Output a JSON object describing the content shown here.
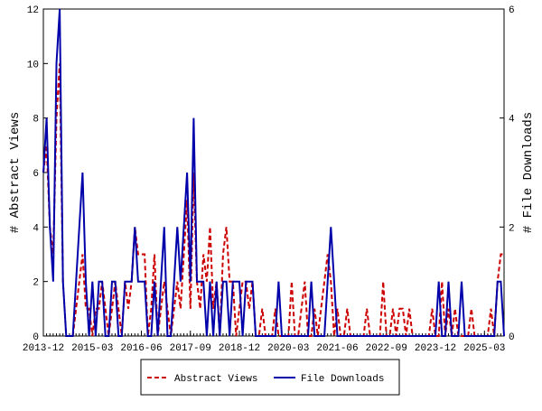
{
  "chart_data": {
    "type": "line",
    "ylabel": "# Abstract Views",
    "y2label": "# File Downloads",
    "x": [
      "2013-12",
      "2014-01",
      "2014-02",
      "2014-03",
      "2014-04",
      "2014-05",
      "2014-06",
      "2014-07",
      "2014-08",
      "2014-09",
      "2014-10",
      "2014-11",
      "2014-12",
      "2015-01",
      "2015-02",
      "2015-03",
      "2015-04",
      "2015-05",
      "2015-06",
      "2015-07",
      "2015-08",
      "2015-09",
      "2015-10",
      "2015-11",
      "2015-12",
      "2016-01",
      "2016-02",
      "2016-03",
      "2016-04",
      "2016-05",
      "2016-06",
      "2016-07",
      "2016-08",
      "2016-09",
      "2016-10",
      "2016-11",
      "2016-12",
      "2017-01",
      "2017-02",
      "2017-03",
      "2017-04",
      "2017-05",
      "2017-06",
      "2017-07",
      "2017-08",
      "2017-09",
      "2017-10",
      "2017-11",
      "2017-12",
      "2018-01",
      "2018-02",
      "2018-03",
      "2018-04",
      "2018-05",
      "2018-06",
      "2018-07",
      "2018-08",
      "2018-09",
      "2018-10",
      "2018-11",
      "2018-12",
      "2019-01",
      "2019-02",
      "2019-03",
      "2019-04",
      "2019-05",
      "2019-06",
      "2019-07",
      "2019-08",
      "2019-09",
      "2019-10",
      "2019-11",
      "2019-12",
      "2020-01",
      "2020-02",
      "2020-03",
      "2020-04",
      "2020-05",
      "2020-06",
      "2020-07",
      "2020-08",
      "2020-09",
      "2020-10",
      "2020-11",
      "2020-12",
      "2021-01",
      "2021-02",
      "2021-03",
      "2021-04",
      "2021-05",
      "2021-06",
      "2021-07",
      "2021-08",
      "2021-09",
      "2021-10",
      "2021-11",
      "2021-12",
      "2022-01",
      "2022-02",
      "2022-03",
      "2022-04",
      "2022-05",
      "2022-06",
      "2022-07",
      "2022-08",
      "2022-09",
      "2022-10",
      "2022-11",
      "2022-12",
      "2023-01",
      "2023-02",
      "2023-03",
      "2023-04",
      "2023-05",
      "2023-06",
      "2023-07",
      "2023-08",
      "2023-09",
      "2023-10",
      "2023-11",
      "2023-12",
      "2024-01",
      "2024-02",
      "2024-03",
      "2024-04",
      "2024-05",
      "2024-06",
      "2024-07",
      "2024-08",
      "2024-09",
      "2024-10",
      "2024-11",
      "2024-12",
      "2025-01",
      "2025-02",
      "2025-03",
      "2025-04",
      "2025-05",
      "2025-06",
      "2025-07",
      "2025-08",
      "2025-09"
    ],
    "series": [
      {
        "name": "Abstract Views",
        "color": "#cc0000",
        "dash": true,
        "values": [
          6,
          7,
          4,
          3,
          8,
          10,
          2,
          0,
          0,
          0,
          1,
          2,
          3,
          1,
          1,
          0,
          1,
          1,
          2,
          1,
          0,
          1,
          2,
          1,
          0,
          2,
          1,
          2,
          4,
          3,
          3,
          3,
          0,
          1,
          3,
          0,
          1,
          2,
          1,
          0,
          1,
          2,
          1,
          3,
          5,
          1,
          6,
          2,
          1,
          3,
          2,
          4,
          1,
          2,
          0,
          3,
          4,
          2,
          2,
          0,
          1,
          2,
          2,
          1,
          2,
          0,
          0,
          1,
          0,
          0,
          0,
          1,
          0,
          0,
          0,
          0,
          2,
          0,
          0,
          1,
          2,
          0,
          0,
          1,
          0,
          1,
          2,
          3,
          2,
          0,
          1,
          0,
          0,
          1,
          0,
          0,
          0,
          0,
          0,
          1,
          0,
          0,
          0,
          0,
          2,
          0,
          0,
          1,
          0,
          1,
          1,
          0,
          1,
          0,
          0,
          0,
          0,
          0,
          0,
          1,
          0,
          0,
          2,
          0,
          1,
          0,
          1,
          0,
          0,
          0,
          0,
          1,
          0,
          0,
          0,
          0,
          0,
          1,
          0,
          2,
          3,
          3
        ]
      },
      {
        "name": "File Downloads",
        "color": "#0000aa",
        "axis": "y2",
        "dash": false,
        "values": [
          3,
          4,
          2,
          1,
          5,
          6,
          1,
          0,
          0,
          0,
          1,
          2,
          3,
          1,
          0,
          1,
          0,
          1,
          1,
          0,
          0,
          1,
          1,
          0,
          0,
          1,
          1,
          1,
          2,
          1,
          1,
          1,
          0,
          0,
          1,
          0,
          1,
          2,
          0,
          0,
          1,
          2,
          1,
          2,
          3,
          1,
          4,
          1,
          1,
          1,
          0,
          1,
          0,
          1,
          0,
          1,
          1,
          0,
          1,
          1,
          1,
          0,
          1,
          1,
          1,
          0,
          0,
          0,
          0,
          0,
          0,
          0,
          1,
          0,
          0,
          0,
          0,
          0,
          0,
          0,
          0,
          0,
          1,
          0,
          0,
          0,
          0,
          1,
          2,
          1,
          0,
          0,
          0,
          0,
          0,
          0,
          0,
          0,
          0,
          0,
          0,
          0,
          0,
          0,
          0,
          0,
          0,
          0,
          0,
          0,
          0,
          0,
          0,
          0,
          0,
          0,
          0,
          0,
          0,
          0,
          0,
          1,
          0,
          0,
          1,
          0,
          0,
          0,
          1,
          0,
          0,
          0,
          0,
          0,
          0,
          0,
          0,
          0,
          0,
          1,
          1,
          0
        ]
      }
    ],
    "xlim": [
      "2013-12",
      "2025-09"
    ],
    "xticks": [
      "2013-12",
      "2015-03",
      "2016-06",
      "2017-09",
      "2018-12",
      "2020-03",
      "2021-06",
      "2022-09",
      "2023-12",
      "2025-03"
    ],
    "ylim": [
      0,
      12
    ],
    "yticks": [
      0,
      2,
      4,
      6,
      8,
      10,
      12
    ],
    "y2lim": [
      0,
      6
    ],
    "y2ticks": [
      0,
      2,
      4,
      6
    ],
    "legend": "bottom"
  }
}
